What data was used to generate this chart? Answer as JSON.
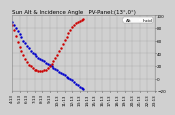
{
  "title": "Sun Alt & Incidence Angle   PV-Panel:(13°,0°)",
  "legend_colors_blue": "#0000cc",
  "legend_colors_red": "#cc0000",
  "background_color": "#d0d0d0",
  "grid_color": "#a0a0a0",
  "plot_bg": "#d0d0d0",
  "blue_x": [
    0.0,
    0.5,
    1.0,
    1.5,
    2.0,
    2.5,
    3.0,
    3.5,
    4.0,
    4.5,
    5.0,
    5.5,
    6.0,
    6.5,
    7.0,
    7.5,
    8.0,
    8.5,
    9.0,
    9.5,
    10.0,
    10.5,
    11.0,
    11.5,
    12.0,
    12.5,
    13.0,
    13.5,
    14.0,
    14.5,
    15.0,
    15.5,
    16.0,
    16.5,
    17.0,
    17.5,
    18.0,
    18.5,
    19.0
  ],
  "blue_y": [
    90,
    85,
    80,
    75,
    70,
    65,
    60,
    56,
    52,
    48,
    44,
    41,
    38,
    35,
    33,
    31,
    29,
    27,
    25,
    23,
    21,
    19,
    17,
    15,
    13,
    11,
    9,
    7,
    5,
    3,
    1,
    -1,
    -3,
    -6,
    -9,
    -11,
    -13,
    -15,
    -17
  ],
  "red_x": [
    0.0,
    0.5,
    1.0,
    1.5,
    2.0,
    2.5,
    3.0,
    3.5,
    4.0,
    4.5,
    5.0,
    5.5,
    6.0,
    6.5,
    7.0,
    7.5,
    8.0,
    8.5,
    9.0,
    9.5,
    10.0,
    10.5,
    11.0,
    11.5,
    12.0,
    12.5,
    13.0,
    13.5,
    14.0,
    14.5,
    15.0,
    15.5,
    16.0,
    16.5,
    17.0,
    17.5,
    18.0,
    18.5,
    19.0
  ],
  "red_y": [
    85,
    76,
    67,
    57,
    50,
    43,
    37,
    31,
    26,
    22,
    19,
    16,
    14,
    13,
    12,
    12,
    12,
    13,
    14,
    16,
    19,
    23,
    27,
    32,
    37,
    43,
    49,
    55,
    61,
    66,
    72,
    77,
    81,
    84,
    87,
    89,
    91,
    93,
    94
  ],
  "xlim_min": 0,
  "xlim_max": 19,
  "ylim_min": -20,
  "ylim_max": 100,
  "xtick_labels": [
    "4:13:30",
    "5:13:30",
    "6:13:30",
    "7:13:30",
    "8:13:30",
    "9:13:30",
    "10:13:30",
    "11:13:30",
    "12:13:30",
    "13:13:30",
    "14:13:30",
    "15:13:30",
    "16:13:30",
    "17:13:30",
    "18:13:30",
    "19:13:30",
    "20:13:30"
  ],
  "ytick_values": [
    -20,
    0,
    20,
    40,
    60,
    80,
    100
  ],
  "title_fontsize": 4.0,
  "tick_fontsize": 3.0,
  "marker_size": 1.5,
  "legend_fontsize": 3.0
}
